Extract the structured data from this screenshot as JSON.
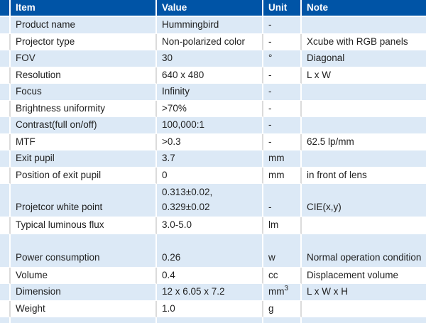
{
  "table": {
    "headers": {
      "item": "Item",
      "value": "Value",
      "unit": "Unit",
      "note": "Note"
    },
    "rows": [
      {
        "item": "Product name",
        "value": "Hummingbird",
        "unit": "-",
        "note": ""
      },
      {
        "item": "Projector type",
        "value": "Non-polarized color",
        "unit": "-",
        "note": "Xcube with RGB panels"
      },
      {
        "item": "FOV",
        "value": "30",
        "unit": "°",
        "note": "Diagonal"
      },
      {
        "item": "Resolution",
        "value": "640 x 480",
        "unit": "-",
        "note": "L x W"
      },
      {
        "item": "Focus",
        "value": "Infinity",
        "unit": "-",
        "note": ""
      },
      {
        "item": "Brightness uniformity",
        "value": ">70%",
        "unit": "-",
        "note": ""
      },
      {
        "item": "Contrast(full on/off)",
        "value": "100,000:1",
        "unit": "-",
        "note": ""
      },
      {
        "item": "MTF",
        "value": ">0.3",
        "unit": "-",
        "note": "62.5 lp/mm"
      },
      {
        "item": "Exit pupil",
        "value": "3.7",
        "unit": "mm",
        "note": ""
      },
      {
        "item": "Position of exit pupil",
        "value": "0",
        "unit": "mm",
        "note": "in front of lens"
      },
      {
        "item": "Projetcor white point",
        "value_lines": [
          "0.313±0.02,",
          "0.329±0.02"
        ],
        "unit": "-",
        "note": "CIE(x,y)",
        "tall": true
      },
      {
        "item": "Typical luminous flux",
        "value": "3.0-5.0",
        "unit": "lm",
        "note": ""
      },
      {
        "item": "Power consumption",
        "value": "0.26",
        "unit": "w",
        "note": "Normal operation condition",
        "tall": true
      },
      {
        "item": "Volume",
        "value": "0.4",
        "unit": "cc",
        "note": "Displacement volume"
      },
      {
        "item": "Dimension",
        "value": "12 x 6.05 x 7.2",
        "unit": "mm",
        "unit_sup": "3",
        "note": "L x W x H"
      },
      {
        "item": "Weight",
        "value": "1.0",
        "unit": "g",
        "note": ""
      }
    ],
    "partial_next_row_visible": true,
    "colors": {
      "header_bg": "#0054a6",
      "header_text": "#ffffff",
      "row_alt_bg": "#dce9f6",
      "row_bg": "#ffffff",
      "grid_line_on_white": "#dbdbdb",
      "body_text": "#212121"
    }
  }
}
